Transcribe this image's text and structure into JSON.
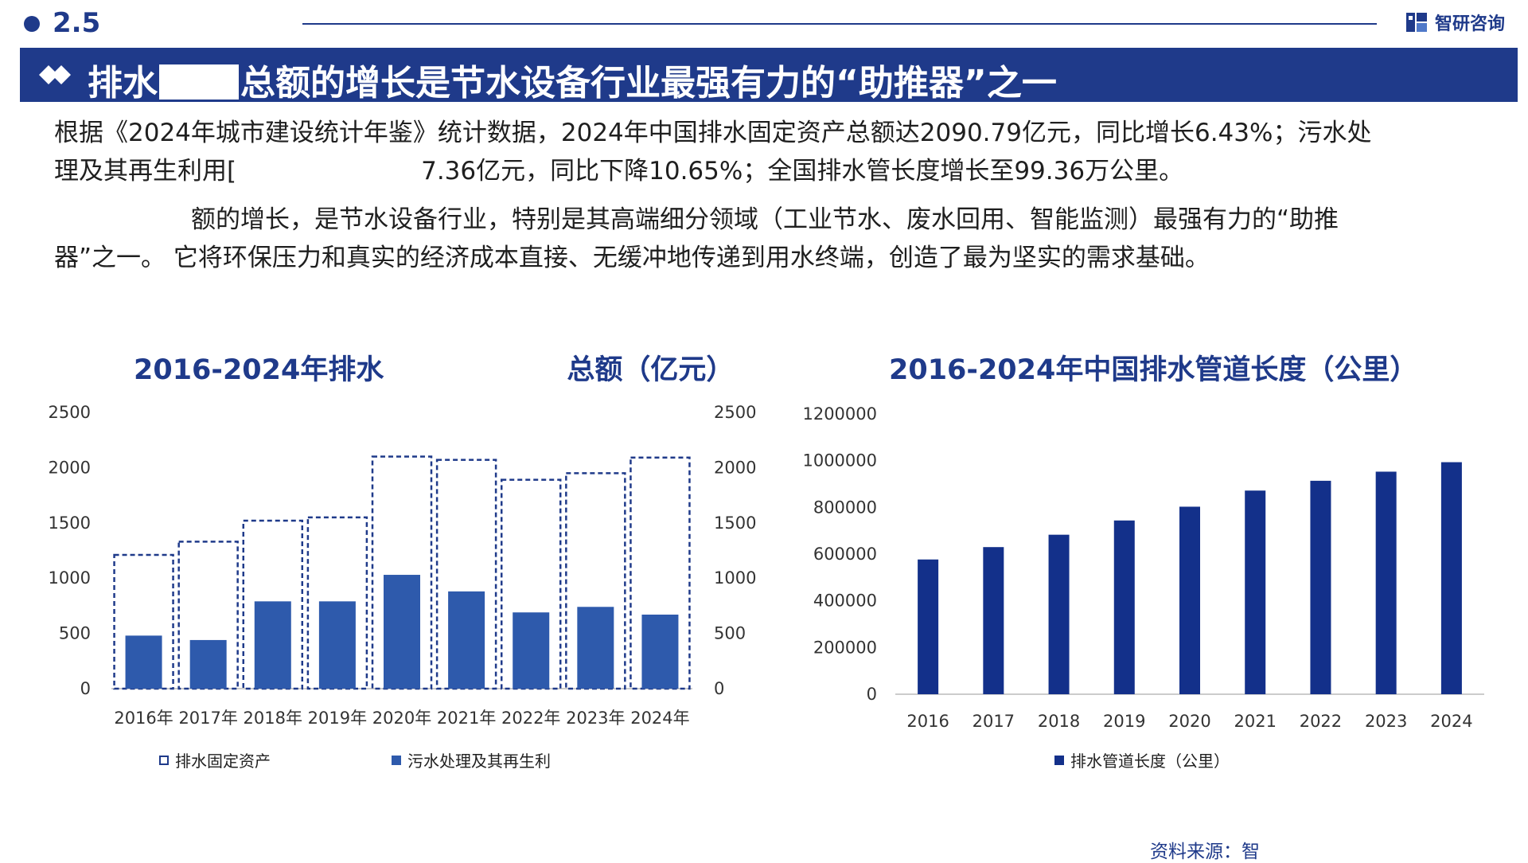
{
  "header": {
    "section_number": "2.5",
    "logo_text": "智研咨询"
  },
  "banner": {
    "title_part1": "排水",
    "title_part2": "总额的增长是节水设备行业最强有力的“助推器”之一"
  },
  "paragraphs": {
    "p1_line1": "根据《2024年城市建设统计年鉴》统计数据，2024年中国排水固定资产总额达2090.79亿元，同比增长6.43%；污水处",
    "p1_line2a": "理及其再生利用[",
    "p1_line2b": "7.36亿元，同比下降10.65%；全国排水管长度增长至99.36万公里。",
    "p2_line1": "额的增长，是节水设备行业，特别是其高端细分领域（工业节水、废水回用、智能监测）最强有力的“助推",
    "p2_line2": "器”之一。 它将环保压力和真实的经济成本直接、无缓冲地传递到用水终端，创造了最为坚实的需求基础。"
  },
  "left_chart": {
    "title_part1": "2016-2024年排水",
    "title_part2": "总额（亿元）",
    "legend": {
      "series1": "排水固定资产",
      "series2": "污水处理及其再生利"
    }
  },
  "right_chart": {
    "title": "2016-2024年中国排水管道长度（公里）",
    "legend": {
      "series1": "排水管道长度（公里）"
    }
  },
  "source": "资料来源：智",
  "colors": {
    "brand": "#1f3a8a",
    "bar_mid": "#2e5aac",
    "bar_dark": "#13308a"
  },
  "chart_data": [
    {
      "type": "bar",
      "categories": [
        "2016年",
        "2017年",
        "2018年",
        "2019年",
        "2020年",
        "2021年",
        "2022年",
        "2023年",
        "2024年"
      ],
      "series": [
        {
          "name": "排水固定资产",
          "values": [
            1210,
            1330,
            1520,
            1550,
            2100,
            2070,
            1890,
            1950,
            2090.79
          ],
          "style": "dashed-outline"
        },
        {
          "name": "污水处理及其再生利",
          "values": [
            480,
            440,
            790,
            790,
            1030,
            880,
            690,
            740,
            670
          ],
          "style": "solid"
        }
      ],
      "ylim": [
        0,
        2500
      ],
      "yticks": [
        0,
        500,
        1000,
        1500,
        2000,
        2500
      ],
      "y2ticks": [
        0,
        500,
        1000,
        1500,
        2000,
        2500
      ],
      "grid": false,
      "legend": "bottom"
    },
    {
      "type": "bar",
      "categories": [
        "2016",
        "2017",
        "2018",
        "2019",
        "2020",
        "2021",
        "2022",
        "2023",
        "2024"
      ],
      "series": [
        {
          "name": "排水管道长度（公里）",
          "values": [
            577000,
            630000,
            683000,
            744000,
            803000,
            872000,
            914000,
            953000,
            993600
          ]
        }
      ],
      "ylim": [
        0,
        1200000
      ],
      "yticks": [
        0,
        200000,
        400000,
        600000,
        800000,
        1000000,
        1200000
      ],
      "grid": false,
      "legend": "bottom"
    }
  ]
}
